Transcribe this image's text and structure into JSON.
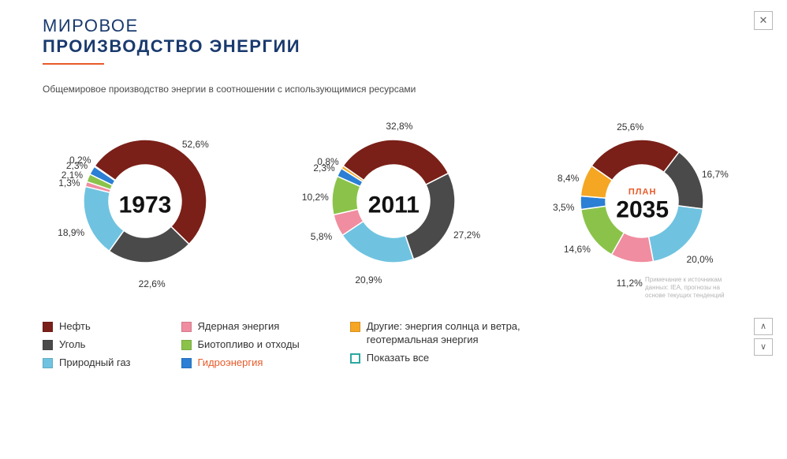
{
  "title": {
    "line1": "МИРОВОЕ",
    "line2": "ПРОИЗВОДСТВО ЭНЕРГИИ"
  },
  "subtitle": "Общемировое производство энергии в соотношении с использующимися ресурсами",
  "colors": {
    "oil": "#7a2018",
    "coal": "#4a4a4a",
    "gas": "#6fc3e0",
    "nuclear": "#f08da0",
    "bio": "#8bc34a",
    "hydro": "#2b7fd4",
    "other": "#f5a623",
    "teal": "#2aa8a0",
    "title": "#1a3a6e",
    "accent": "#e85a2a",
    "label": "#333333",
    "background": "#ffffff"
  },
  "donut": {
    "outer_r": 78,
    "inner_r": 46,
    "start_angle": -55
  },
  "label_fontsize": 12,
  "center_year_fontsize": 30,
  "charts": [
    {
      "center": {
        "year": "1973"
      },
      "slices": [
        {
          "key": "oil",
          "value": 52.6,
          "label": "52,6%"
        },
        {
          "key": "coal",
          "value": 22.6,
          "label": "22,6%"
        },
        {
          "key": "gas",
          "value": 18.9,
          "label": "18,9%"
        },
        {
          "key": "nuclear",
          "value": 1.3,
          "label": "1,3%"
        },
        {
          "key": "bio",
          "value": 2.1,
          "label": "2,1%"
        },
        {
          "key": "hydro",
          "value": 2.3,
          "label": "2,3%"
        },
        {
          "key": "other",
          "value": 0.2,
          "label": "0,2%"
        }
      ]
    },
    {
      "center": {
        "year": "2011"
      },
      "slices": [
        {
          "key": "oil",
          "value": 32.8,
          "label": "32,8%"
        },
        {
          "key": "coal",
          "value": 27.2,
          "label": "27,2%"
        },
        {
          "key": "gas",
          "value": 20.9,
          "label": "20,9%"
        },
        {
          "key": "nuclear",
          "value": 5.8,
          "label": "5,8%"
        },
        {
          "key": "bio",
          "value": 10.2,
          "label": "10,2%"
        },
        {
          "key": "hydro",
          "value": 2.3,
          "label": "2,3%"
        },
        {
          "key": "other",
          "value": 0.8,
          "label": "0,8%"
        }
      ]
    },
    {
      "center": {
        "plan": "ПЛАН",
        "year": "2035"
      },
      "slices": [
        {
          "key": "oil",
          "value": 25.6,
          "label": "25,6%"
        },
        {
          "key": "coal",
          "value": 16.7,
          "label": "16,7%"
        },
        {
          "key": "gas",
          "value": 20.0,
          "label": "20,0%"
        },
        {
          "key": "nuclear",
          "value": 11.2,
          "label": "11,2%"
        },
        {
          "key": "bio",
          "value": 14.6,
          "label": "14,6%"
        },
        {
          "key": "hydro",
          "value": 3.5,
          "label": "3,5%"
        },
        {
          "key": "other",
          "value": 8.4,
          "label": "8,4%"
        }
      ]
    }
  ],
  "legend": {
    "col1": [
      {
        "color_key": "oil",
        "label": "Нефть"
      },
      {
        "color_key": "coal",
        "label": "Уголь"
      },
      {
        "color_key": "gas",
        "label": "Природный газ"
      }
    ],
    "col2": [
      {
        "color_key": "nuclear",
        "label": "Ядерная энергия"
      },
      {
        "color_key": "bio",
        "label": "Биотопливо и отходы"
      },
      {
        "color_key": "hydro",
        "label": "Гидроэнергия",
        "accent": true
      }
    ],
    "col3": [
      {
        "color_key": "other",
        "label": "Другие: энергия солнца и ветра, геотермальная энергия"
      },
      {
        "color_key": "teal",
        "label": "Показать все",
        "open": true
      }
    ]
  },
  "footnote": "Примечание к источникам данных: IEA, прогнозы на основе текущих тенденций",
  "controls": {
    "close": "✕",
    "up": "∧",
    "down": "∨"
  }
}
